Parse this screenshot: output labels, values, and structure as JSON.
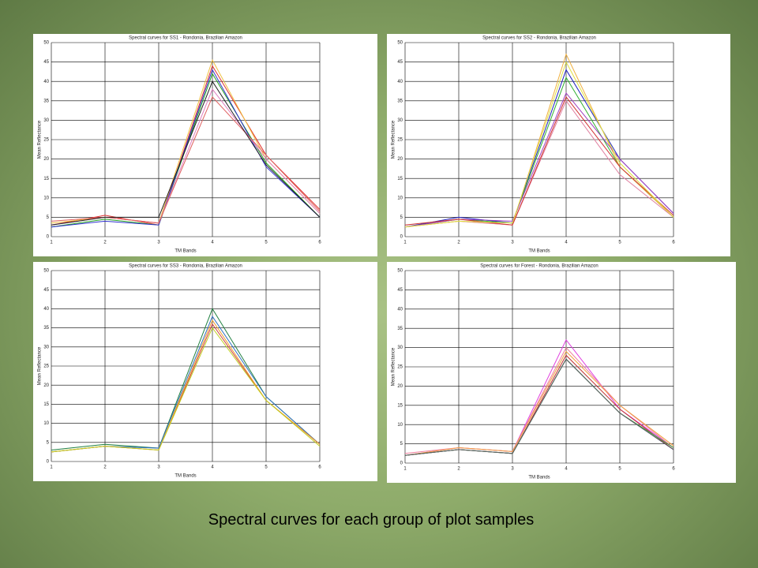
{
  "chart_data": [
    {
      "type": "line",
      "title": "Spectral curves for SS1 - Rondonia, Brazilian Amazon",
      "xlabel": "TM Bands",
      "ylabel": "Mean Reflectance",
      "x": [
        1,
        2,
        3,
        4,
        5,
        6
      ],
      "xlim": [
        1,
        6
      ],
      "xticks": [
        1,
        2,
        3,
        4,
        5,
        6
      ],
      "ylim": [
        0,
        50
      ],
      "yticks": [
        0,
        5,
        10,
        15,
        20,
        25,
        30,
        35,
        40,
        45,
        50
      ],
      "grid": true,
      "series": [
        {
          "color": "#e03030",
          "values": [
            3,
            5.5,
            3,
            44,
            21,
            7
          ]
        },
        {
          "color": "#20a020",
          "values": [
            2.5,
            4.5,
            3,
            42,
            19,
            5
          ]
        },
        {
          "color": "#3030d0",
          "values": [
            2.5,
            4,
            3,
            43,
            18,
            5
          ]
        },
        {
          "color": "#f0c040",
          "values": [
            3.5,
            5,
            3.5,
            45.5,
            20,
            6
          ]
        },
        {
          "color": "#e080c0",
          "values": [
            3,
            5,
            3.5,
            38,
            20,
            6
          ]
        },
        {
          "color": "#e06060",
          "values": [
            4,
            5,
            3.5,
            36,
            21,
            6.5
          ]
        },
        {
          "color": "#202020",
          "values": [
            3,
            5,
            5,
            40,
            18.5,
            5
          ]
        }
      ]
    },
    {
      "type": "line",
      "title": "Spectral curves for SS2 - Rondonia, Brazilian Amazon",
      "xlabel": "TM Bands",
      "ylabel": "Mean Reflectance",
      "x": [
        1,
        2,
        3,
        4,
        5,
        6
      ],
      "xlim": [
        1,
        6
      ],
      "xticks": [
        1,
        2,
        3,
        4,
        5,
        6
      ],
      "ylim": [
        0,
        50
      ],
      "yticks": [
        0,
        5,
        10,
        15,
        20,
        25,
        30,
        35,
        40,
        45,
        50
      ],
      "grid": true,
      "series": [
        {
          "color": "#2020c0",
          "values": [
            2.5,
            5,
            3.5,
            43,
            20,
            6
          ]
        },
        {
          "color": "#30b030",
          "values": [
            2.5,
            4.5,
            3.5,
            41,
            18,
            5
          ]
        },
        {
          "color": "#f0b040",
          "values": [
            2.5,
            4,
            3,
            47,
            18,
            5
          ]
        },
        {
          "color": "#a040c0",
          "values": [
            2.5,
            4.5,
            4,
            37,
            20,
            6
          ]
        },
        {
          "color": "#e080a0",
          "values": [
            2.5,
            4,
            3,
            35,
            16,
            5
          ]
        },
        {
          "color": "#d03030",
          "values": [
            3,
            4.5,
            3,
            36,
            18,
            5.5
          ]
        },
        {
          "color": "#e0e040",
          "values": [
            2.5,
            4,
            3.5,
            45,
            19,
            5
          ]
        }
      ]
    },
    {
      "type": "line",
      "title": "Spectral curves for SS3 - Rondonia, Brazilian Amazon",
      "xlabel": "TM Bands",
      "ylabel": "Mean Reflectance",
      "x": [
        1,
        2,
        3,
        4,
        5,
        6
      ],
      "xlim": [
        1,
        6
      ],
      "xticks": [
        1,
        2,
        3,
        4,
        5,
        6
      ],
      "ylim": [
        0,
        50
      ],
      "yticks": [
        0,
        5,
        10,
        15,
        20,
        25,
        30,
        35,
        40,
        45,
        50
      ],
      "grid": true,
      "series": [
        {
          "color": "#208040",
          "values": [
            3,
            4.5,
            3.5,
            40,
            17,
            4.5
          ]
        },
        {
          "color": "#3070c0",
          "values": [
            2.5,
            4,
            3.5,
            38,
            17,
            4.5
          ]
        },
        {
          "color": "#d04040",
          "values": [
            2.5,
            4,
            3,
            36,
            16,
            4.5
          ]
        },
        {
          "color": "#f0a030",
          "values": [
            2.5,
            4,
            3,
            37,
            16,
            4.5
          ]
        },
        {
          "color": "#c0d020",
          "values": [
            2.5,
            4,
            3,
            35,
            16,
            4
          ]
        }
      ]
    },
    {
      "type": "line",
      "title": "Spectral curves for Forest - Rondonia, Brazilian Amazon",
      "xlabel": "TM Bands",
      "ylabel": "Mean Reflectance",
      "x": [
        1,
        2,
        3,
        4,
        5,
        6
      ],
      "xlim": [
        1,
        6
      ],
      "xticks": [
        1,
        2,
        3,
        4,
        5,
        6
      ],
      "ylim": [
        0,
        50
      ],
      "yticks": [
        0,
        5,
        10,
        15,
        20,
        25,
        30,
        35,
        40,
        45,
        50
      ],
      "grid": true,
      "series": [
        {
          "color": "#e040e0",
          "values": [
            2,
            4,
            3,
            32,
            14,
            4
          ]
        },
        {
          "color": "#f080a0",
          "values": [
            2.5,
            4,
            3,
            30,
            15,
            4
          ]
        },
        {
          "color": "#f0a040",
          "values": [
            2,
            4,
            3,
            29,
            15,
            4.5
          ]
        },
        {
          "color": "#c03030",
          "values": [
            2,
            3.5,
            2.5,
            28,
            14,
            3.5
          ]
        },
        {
          "color": "#3050b0",
          "values": [
            2,
            3.5,
            2.5,
            27,
            13,
            3.5
          ]
        },
        {
          "color": "#40a040",
          "values": [
            2,
            3.5,
            2.5,
            27,
            13,
            4
          ]
        },
        {
          "color": "#606060",
          "values": [
            2,
            3.5,
            2.5,
            27,
            13,
            3.5
          ]
        }
      ]
    }
  ],
  "caption": "Spectral curves for each group of plot samples"
}
